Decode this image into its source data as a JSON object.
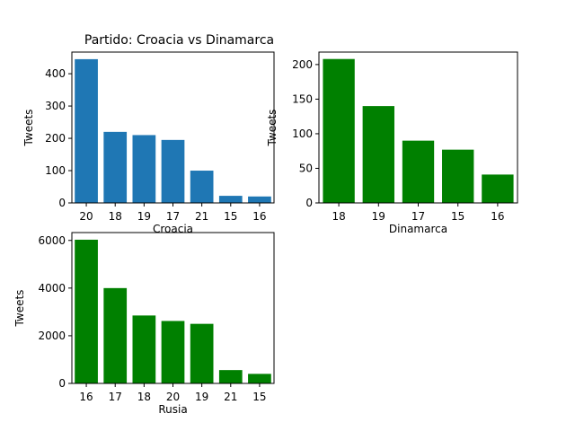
{
  "chart_data": [
    {
      "type": "bar",
      "title": "Partido: Croacia vs Dinamarca",
      "xlabel": "Croacia",
      "ylabel": "Tweets",
      "categories": [
        "20",
        "18",
        "19",
        "17",
        "21",
        "15",
        "16"
      ],
      "values": [
        445,
        220,
        210,
        195,
        100,
        22,
        20
      ],
      "ylim": [
        0,
        467
      ],
      "yticks": [
        0,
        100,
        200,
        300,
        400
      ],
      "color": "#1f77b4"
    },
    {
      "type": "bar",
      "title": "",
      "xlabel": "Dinamarca",
      "ylabel": "Tweets",
      "categories": [
        "18",
        "19",
        "17",
        "15",
        "16"
      ],
      "values": [
        208,
        140,
        90,
        77,
        41
      ],
      "ylim": [
        0,
        218
      ],
      "yticks": [
        0,
        50,
        100,
        150,
        200
      ],
      "color": "#008000"
    },
    {
      "type": "bar",
      "title": "",
      "xlabel": "Rusia",
      "ylabel": "Tweets",
      "categories": [
        "16",
        "17",
        "18",
        "20",
        "19",
        "21",
        "15"
      ],
      "values": [
        6030,
        4000,
        2850,
        2620,
        2500,
        560,
        400
      ],
      "ylim": [
        0,
        6330
      ],
      "yticks": [
        0,
        2000,
        4000,
        6000
      ],
      "color": "#008000"
    }
  ]
}
